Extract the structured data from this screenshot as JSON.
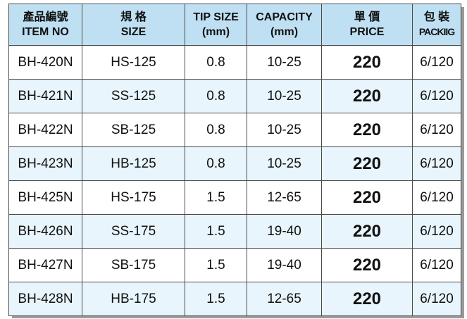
{
  "table": {
    "header": [
      [
        "產品編號",
        "ITEM NO"
      ],
      [
        "規 格",
        "SIZE"
      ],
      [
        "TIP SIZE",
        "(mm)"
      ],
      [
        "CAPACITY",
        "(mm)"
      ],
      [
        "單 價",
        "PRICE"
      ],
      [
        "包 裝",
        "PACKIIG"
      ]
    ],
    "rows": [
      [
        "BH-420N",
        "HS-125",
        "0.8",
        "10-25",
        "220",
        "6/120"
      ],
      [
        "BH-421N",
        "SS-125",
        "0.8",
        "10-25",
        "220",
        "6/120"
      ],
      [
        "BH-422N",
        "SB-125",
        "0.8",
        "10-25",
        "220",
        "6/120"
      ],
      [
        "BH-423N",
        "HB-125",
        "0.8",
        "10-25",
        "220",
        "6/120"
      ],
      [
        "BH-425N",
        "HS-175",
        "1.5",
        "12-65",
        "220",
        "6/120"
      ],
      [
        "BH-426N",
        "SS-175",
        "1.5",
        "19-40",
        "220",
        "6/120"
      ],
      [
        "BH-427N",
        "SB-175",
        "1.5",
        "19-40",
        "220",
        "6/120"
      ],
      [
        "BH-428N",
        "HB-175",
        "1.5",
        "12-65",
        "220",
        "6/120"
      ]
    ]
  }
}
